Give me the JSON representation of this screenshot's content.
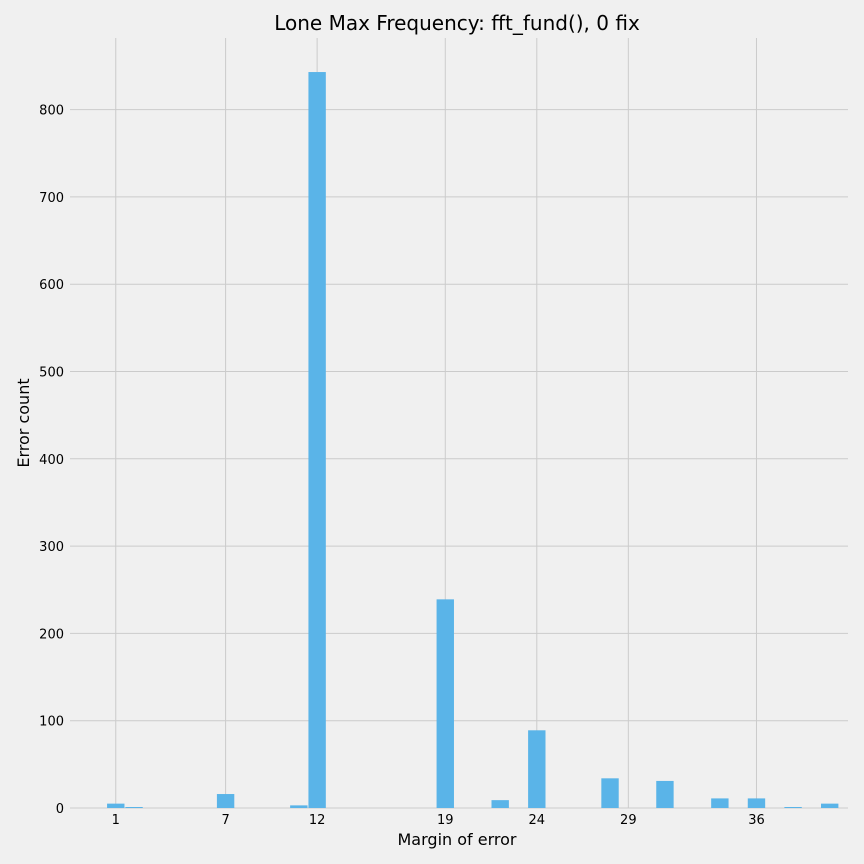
{
  "chart_data": {
    "type": "bar",
    "title": "Lone Max Frequency: fft_fund(), 0 fix",
    "xlabel": "Margin of error",
    "ylabel": "Error count",
    "x_ticks": [
      1,
      7,
      12,
      19,
      24,
      29,
      36
    ],
    "y_ticks": [
      0,
      100,
      200,
      300,
      400,
      500,
      600,
      700,
      800
    ],
    "xlim": [
      -1.5,
      41
    ],
    "ylim": [
      0,
      882
    ],
    "grid": true,
    "bar_color": "#5ab4e8",
    "bars": [
      {
        "x": 1,
        "value": 5
      },
      {
        "x": 2,
        "value": 1
      },
      {
        "x": 7,
        "value": 16
      },
      {
        "x": 11,
        "value": 3
      },
      {
        "x": 12,
        "value": 843
      },
      {
        "x": 19,
        "value": 239
      },
      {
        "x": 22,
        "value": 9
      },
      {
        "x": 24,
        "value": 89
      },
      {
        "x": 28,
        "value": 34
      },
      {
        "x": 31,
        "value": 31
      },
      {
        "x": 34,
        "value": 11
      },
      {
        "x": 36,
        "value": 11
      },
      {
        "x": 38,
        "value": 1
      },
      {
        "x": 40,
        "value": 5
      }
    ]
  }
}
